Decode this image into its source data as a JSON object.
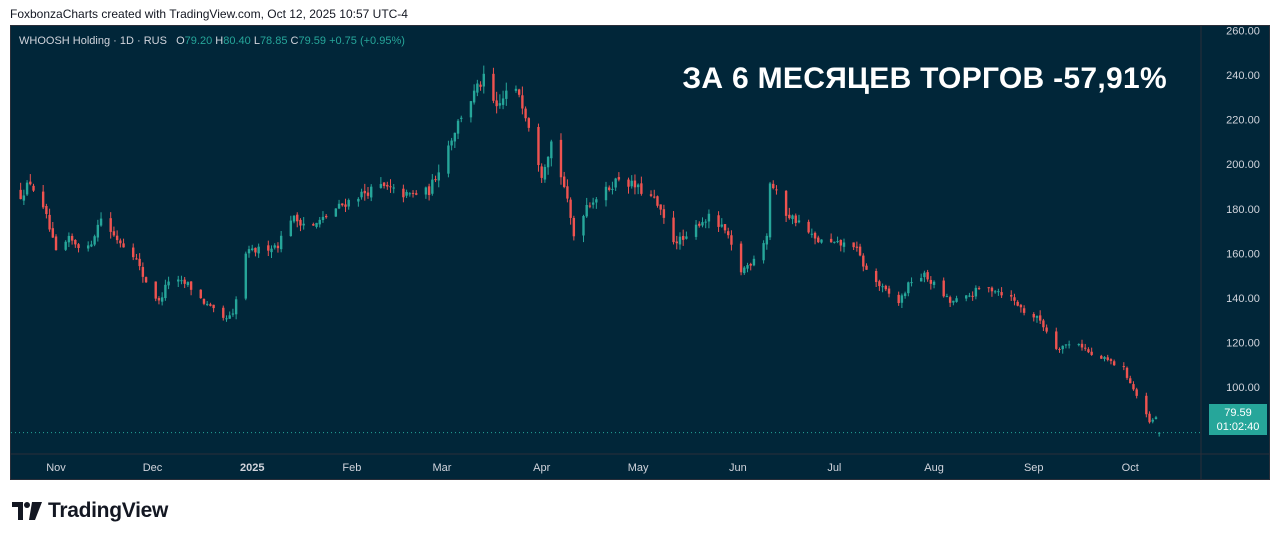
{
  "header": {
    "credit": "FoxbonzaCharts created with TradingView.com, Oct 12, 2025 10:57 UTC-4"
  },
  "legend": {
    "symbol": "WHOOSH Holding · 1D · RUS",
    "open_label": "O",
    "open": "79.20",
    "high_label": "H",
    "high": "80.40",
    "low_label": "L",
    "low": "78.85",
    "close_label": "C",
    "close": "79.59",
    "change": "+0.75 (+0.95%)"
  },
  "headline": "ЗА 6 МЕСЯЦЕВ ТОРГОВ -57,91%",
  "price_tag": {
    "price": "79.59",
    "countdown": "01:02:40"
  },
  "brand": {
    "name": "TradingView",
    "logo_icon": "tradingview-logo-icon"
  },
  "colors": {
    "background": "#012639",
    "up": "#26a69a",
    "down": "#ef5350",
    "axis_text": "#d1d4dc"
  },
  "chart_data": {
    "type": "candlestick",
    "symbol": "WHOOSH Holding",
    "interval": "1D",
    "ylim": [
      70,
      262
    ],
    "y_ticks": [
      100,
      120,
      140,
      160,
      180,
      200,
      220,
      240,
      260
    ],
    "y_tick_labels": [
      "100.00",
      "120.00",
      "140.00",
      "160.00",
      "180.00",
      "200.00",
      "220.00",
      "240.00",
      "260.00"
    ],
    "x_labels": [
      "Nov",
      "Dec",
      "2025",
      "Feb",
      "Mar",
      "Apr",
      "May",
      "Jun",
      "Jul",
      "Aug",
      "Sep",
      "Oct"
    ],
    "x_label_dates": [
      "2024-11-01",
      "2024-12-01",
      "2025-01-01",
      "2025-02-01",
      "2025-03-01",
      "2025-04-01",
      "2025-05-01",
      "2025-06-01",
      "2025-07-01",
      "2025-08-01",
      "2025-09-01",
      "2025-10-01"
    ],
    "last_price": 79.59,
    "close_anchors": [
      [
        "2024-10-21",
        186
      ],
      [
        "2024-10-24",
        192
      ],
      [
        "2024-10-29",
        176
      ],
      [
        "2024-11-01",
        160
      ],
      [
        "2024-11-05",
        166
      ],
      [
        "2024-11-11",
        162
      ],
      [
        "2024-11-15",
        176
      ],
      [
        "2024-11-19",
        168
      ],
      [
        "2024-11-25",
        160
      ],
      [
        "2024-11-28",
        150
      ],
      [
        "2024-12-03",
        138
      ],
      [
        "2024-12-06",
        148
      ],
      [
        "2024-12-12",
        146
      ],
      [
        "2024-12-17",
        138
      ],
      [
        "2024-12-23",
        130
      ],
      [
        "2024-12-26",
        132
      ],
      [
        "2024-12-30",
        160
      ],
      [
        "2025-01-09",
        164
      ],
      [
        "2025-01-13",
        176
      ],
      [
        "2025-01-20",
        172
      ],
      [
        "2025-01-27",
        180
      ],
      [
        "2025-02-03",
        186
      ],
      [
        "2025-02-10",
        190
      ],
      [
        "2025-02-18",
        186
      ],
      [
        "2025-02-25",
        188
      ],
      [
        "2025-02-28",
        198
      ],
      [
        "2025-03-04",
        212
      ],
      [
        "2025-03-07",
        222
      ],
      [
        "2025-03-12",
        234
      ],
      [
        "2025-03-14",
        238
      ],
      [
        "2025-03-18",
        224
      ],
      [
        "2025-03-21",
        232
      ],
      [
        "2025-03-25",
        232
      ],
      [
        "2025-03-28",
        218
      ],
      [
        "2025-04-01",
        196
      ],
      [
        "2025-04-04",
        210
      ],
      [
        "2025-04-08",
        190
      ],
      [
        "2025-04-11",
        168
      ],
      [
        "2025-04-15",
        182
      ],
      [
        "2025-04-21",
        188
      ],
      [
        "2025-04-25",
        194
      ],
      [
        "2025-04-30",
        190
      ],
      [
        "2025-05-06",
        184
      ],
      [
        "2025-05-12",
        166
      ],
      [
        "2025-05-16",
        166
      ],
      [
        "2025-05-20",
        174
      ],
      [
        "2025-05-23",
        176
      ],
      [
        "2025-05-28",
        170
      ],
      [
        "2025-06-02",
        152
      ],
      [
        "2025-06-05",
        156
      ],
      [
        "2025-06-10",
        168
      ],
      [
        "2025-06-11",
        192
      ],
      [
        "2025-06-16",
        178
      ],
      [
        "2025-06-20",
        174
      ],
      [
        "2025-06-25",
        166
      ],
      [
        "2025-07-01",
        164
      ],
      [
        "2025-07-07",
        164
      ],
      [
        "2025-07-11",
        152
      ],
      [
        "2025-07-16",
        144
      ],
      [
        "2025-07-21",
        138
      ],
      [
        "2025-07-25",
        148
      ],
      [
        "2025-07-29",
        150
      ],
      [
        "2025-08-01",
        146
      ],
      [
        "2025-08-06",
        138
      ],
      [
        "2025-08-11",
        140
      ],
      [
        "2025-08-15",
        144
      ],
      [
        "2025-08-20",
        144
      ],
      [
        "2025-08-25",
        140
      ],
      [
        "2025-08-29",
        134
      ],
      [
        "2025-09-03",
        130
      ],
      [
        "2025-09-08",
        118
      ],
      [
        "2025-09-15",
        120
      ],
      [
        "2025-09-19",
        114
      ],
      [
        "2025-09-24",
        112
      ],
      [
        "2025-09-29",
        108
      ],
      [
        "2025-10-03",
        96
      ],
      [
        "2025-10-07",
        84
      ],
      [
        "2025-10-09",
        86
      ],
      [
        "2025-10-10",
        79.59
      ]
    ]
  }
}
